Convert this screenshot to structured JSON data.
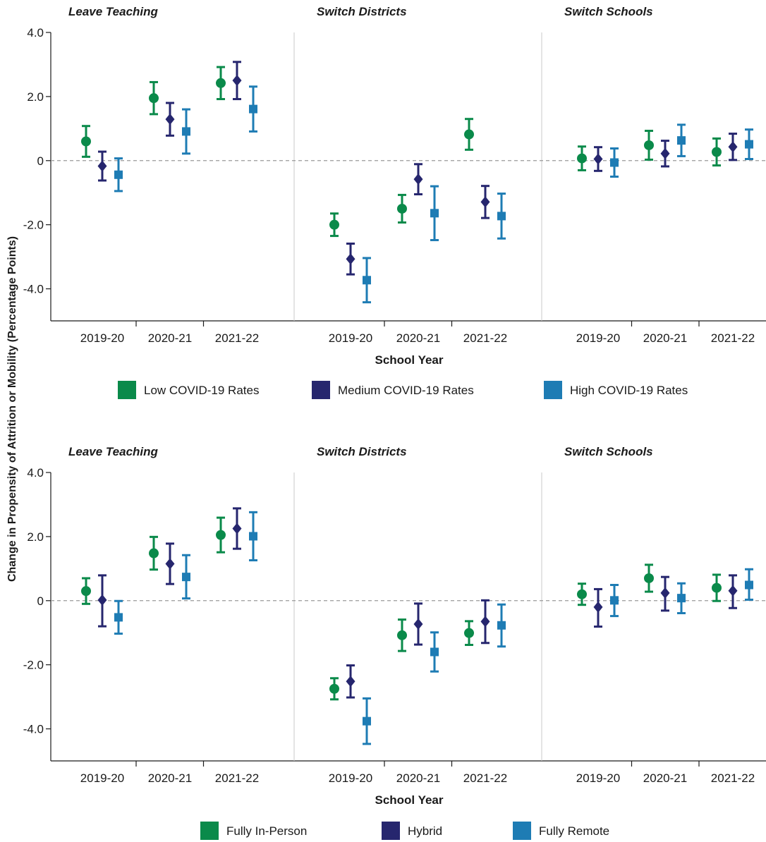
{
  "ylabel": "Change in Propensity of Attrition or Mobility (Percentage Points)",
  "chart_data": [
    {
      "type": "scatter",
      "xlabel": "School Year",
      "ylim": [
        -5.0,
        4.0
      ],
      "yticks": [
        "4.0",
        "2.0",
        "0",
        "-2.0",
        "-4.0"
      ],
      "categories": [
        "2019-20",
        "2020-21",
        "2021-22"
      ],
      "panels": [
        "Leave Teaching",
        "Switch Districts",
        "Switch Schools"
      ],
      "legend_position": "bottom",
      "reference_line": 0,
      "series": [
        {
          "name": "Low COVID-19 Rates",
          "color": "#0a8a4a",
          "marker": "circle",
          "values": [
            [
              0.6,
              1.95,
              2.42
            ],
            [
              -2.0,
              -1.5,
              0.82
            ],
            [
              0.07,
              0.48,
              0.27
            ]
          ],
          "lower": [
            [
              0.12,
              1.45,
              1.92
            ],
            [
              -2.35,
              -1.93,
              0.34
            ],
            [
              -0.3,
              0.03,
              -0.15
            ]
          ],
          "upper": [
            [
              1.08,
              2.45,
              2.92
            ],
            [
              -1.65,
              -1.07,
              1.3
            ],
            [
              0.44,
              0.93,
              0.69
            ]
          ]
        },
        {
          "name": "Medium COVID-19 Rates",
          "color": "#26266e",
          "marker": "diamond",
          "values": [
            [
              -0.17,
              1.29,
              2.5
            ],
            [
              -3.07,
              -0.58,
              -1.29
            ],
            [
              0.05,
              0.22,
              0.43
            ]
          ],
          "lower": [
            [
              -0.62,
              0.78,
              1.92
            ],
            [
              -3.55,
              -1.05,
              -1.79
            ],
            [
              -0.32,
              -0.18,
              0.02
            ]
          ],
          "upper": [
            [
              0.28,
              1.8,
              3.08
            ],
            [
              -2.59,
              -0.11,
              -0.79
            ],
            [
              0.42,
              0.62,
              0.84
            ]
          ]
        },
        {
          "name": "High COVID-19 Rates",
          "color": "#1e7cb4",
          "marker": "square",
          "values": [
            [
              -0.44,
              0.91,
              1.61
            ],
            [
              -3.73,
              -1.64,
              -1.73
            ],
            [
              -0.06,
              0.63,
              0.51
            ]
          ],
          "lower": [
            [
              -0.95,
              0.22,
              0.91
            ],
            [
              -4.42,
              -2.48,
              -2.43
            ],
            [
              -0.5,
              0.14,
              0.05
            ]
          ],
          "upper": [
            [
              0.07,
              1.6,
              2.31
            ],
            [
              -3.04,
              -0.8,
              -1.03
            ],
            [
              0.38,
              1.12,
              0.97
            ]
          ]
        }
      ]
    },
    {
      "type": "scatter",
      "xlabel": "School Year",
      "ylim": [
        -5.0,
        4.0
      ],
      "yticks": [
        "4.0",
        "2.0",
        "0",
        "-2.0",
        "-4.0"
      ],
      "categories": [
        "2019-20",
        "2020-21",
        "2021-22"
      ],
      "panels": [
        "Leave Teaching",
        "Switch Districts",
        "Switch Schools"
      ],
      "legend_position": "bottom",
      "reference_line": 0,
      "series": [
        {
          "name": "Fully In-Person",
          "color": "#0a8a4a",
          "marker": "circle",
          "values": [
            [
              0.3,
              1.48,
              2.05
            ],
            [
              -2.75,
              -1.08,
              -1.01
            ],
            [
              0.2,
              0.7,
              0.4
            ]
          ],
          "lower": [
            [
              -0.1,
              0.97,
              1.51
            ],
            [
              -3.08,
              -1.57,
              -1.38
            ],
            [
              -0.13,
              0.28,
              -0.01
            ]
          ],
          "upper": [
            [
              0.7,
              1.99,
              2.59
            ],
            [
              -2.42,
              -0.59,
              -0.64
            ],
            [
              0.53,
              1.12,
              0.81
            ]
          ]
        },
        {
          "name": "Hybrid",
          "color": "#26266e",
          "marker": "diamond",
          "values": [
            [
              0.02,
              1.15,
              2.25
            ],
            [
              -2.52,
              -0.73,
              -0.65
            ],
            [
              -0.2,
              0.24,
              0.31
            ]
          ],
          "lower": [
            [
              -0.8,
              0.52,
              1.62
            ],
            [
              -3.02,
              -1.37,
              -1.32
            ],
            [
              -0.81,
              -0.31,
              -0.23
            ]
          ],
          "upper": [
            [
              0.79,
              1.78,
              2.88
            ],
            [
              -2.02,
              -0.09,
              0.01
            ],
            [
              0.36,
              0.74,
              0.79
            ]
          ]
        },
        {
          "name": "Fully Remote",
          "color": "#1e7cb4",
          "marker": "square",
          "values": [
            [
              -0.52,
              0.74,
              2.01
            ],
            [
              -3.76,
              -1.6,
              -0.77
            ],
            [
              0.01,
              0.08,
              0.49
            ]
          ],
          "lower": [
            [
              -1.03,
              0.07,
              1.26
            ],
            [
              -4.47,
              -2.21,
              -1.43
            ],
            [
              -0.48,
              -0.39,
              0.03
            ]
          ],
          "upper": [
            [
              -0.01,
              1.42,
              2.76
            ],
            [
              -3.05,
              -0.99,
              -0.12
            ],
            [
              0.49,
              0.54,
              0.98
            ]
          ]
        }
      ]
    }
  ]
}
